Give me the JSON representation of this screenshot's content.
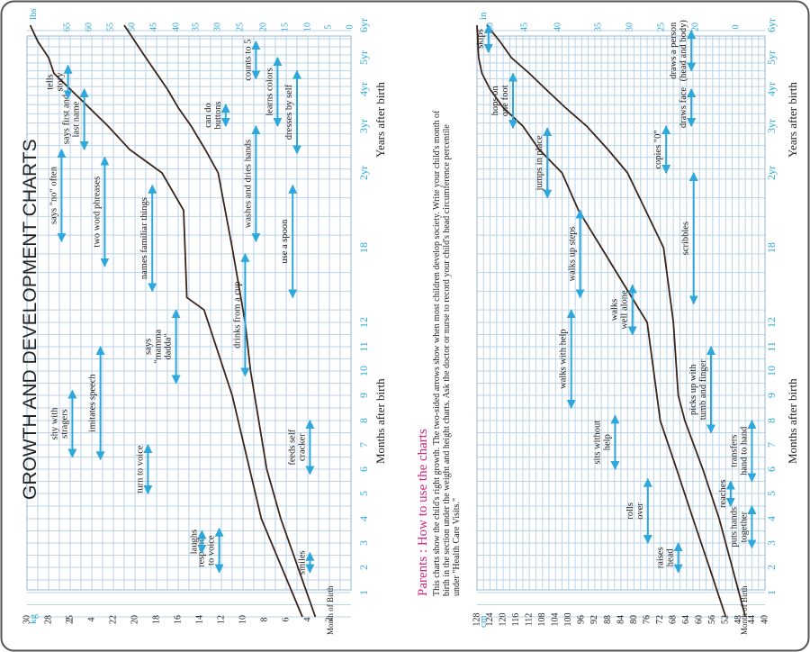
{
  "left": {
    "title": "GROWTH AND DEVELOPMENT CHARTS",
    "kg_unit": "kg",
    "lbs_unit": "lbs",
    "month_of_birth": "Month of Birth",
    "months_title": "Months after birth",
    "years_title": "Years after birth"
  },
  "right": {
    "cm_unit": "cm",
    "in_unit": "in",
    "month_of_birth": "Month of Birth",
    "months_title": "Months after birth",
    "years_title": "Years after birth"
  },
  "instructions": {
    "heading": "Parents : How to use the charts",
    "line1": "This charts show the child's right growth. The two-sided arrows show when most children develop society. Write your child's month of",
    "line2": "birth in the section under the weight and height charts. Ask the doctor or nurse to record your child's head circumference percentile",
    "line3": "under \"Health Care Visits.\"",
    "line4": ""
  },
  "chart_data": [
    {
      "type": "line",
      "chart": "weight",
      "x_unit": "months",
      "xlim": [
        0,
        72
      ],
      "ylim": [
        0,
        30
      ],
      "month_ticks": [
        "1",
        "2",
        "3",
        "4",
        "5",
        "6",
        "7",
        "8",
        "9",
        "10",
        "11",
        "12",
        "18"
      ],
      "year_ticks": [
        "2yr",
        "3yr",
        "4yr",
        "5yr",
        "6yr"
      ],
      "kg_ticks": [
        "2",
        "4",
        "6",
        "8",
        "10",
        "12",
        "14",
        "16",
        "18",
        "20",
        "22",
        "4",
        "2",
        "25",
        "28",
        "30"
      ],
      "lbs_ticks": [
        "0",
        "5",
        "10",
        "15",
        "20",
        "25",
        "30",
        "35",
        "40",
        "45",
        "50",
        "55",
        "60",
        "65"
      ],
      "series": [
        {
          "points": [
            [
              0,
              3.3
            ],
            [
              4,
              6.5
            ],
            [
              6,
              7.8
            ],
            [
              10,
              9.3
            ],
            [
              12,
              9.8
            ],
            [
              18,
              11
            ],
            [
              24,
              12.3
            ],
            [
              30,
              13.5
            ],
            [
              36,
              14.8
            ],
            [
              42,
              16
            ],
            [
              48,
              17
            ],
            [
              54,
              18
            ],
            [
              60,
              19
            ],
            [
              66,
              20
            ],
            [
              72,
              21
            ]
          ]
        },
        {
          "points": [
            [
              0,
              4.5
            ],
            [
              4,
              8.3
            ],
            [
              9,
              11
            ],
            [
              13,
              13.6
            ],
            [
              14,
              15.2
            ],
            [
              21,
              15.5
            ],
            [
              24,
              17.5
            ],
            [
              30,
              20.5
            ],
            [
              36,
              22.5
            ],
            [
              48,
              26
            ],
            [
              54,
              27.5
            ],
            [
              60,
              28
            ],
            [
              66,
              29
            ],
            [
              72,
              29.7
            ]
          ]
        }
      ],
      "milestones": [
        {
          "label": [
            "smiles"
          ],
          "from": 1.8,
          "to": 2.6,
          "level": 3.8
        },
        {
          "label": [
            "responds",
            "to voice"
          ],
          "from": 1.8,
          "to": 3.6,
          "level": 12.2
        },
        {
          "label": [
            "laughs"
          ],
          "from": 2.6,
          "to": 3.5,
          "level": 13.8
        },
        {
          "label": [
            "turn to voice"
          ],
          "from": 5,
          "to": 7,
          "level": 18.8
        },
        {
          "label": [
            "feeds self",
            "cracker"
          ],
          "from": 5.8,
          "to": 8,
          "level": 3.8
        },
        {
          "label": [
            "imitates speech"
          ],
          "from": 6.4,
          "to": 11,
          "level": 23.2
        },
        {
          "label": [
            "shy with",
            "stragers"
          ],
          "from": 6.5,
          "to": 9.2,
          "level": 25.8
        },
        {
          "label": [
            "says",
            "\"mamma",
            "dadda\""
          ],
          "from": 9.5,
          "to": 13,
          "level": 16.2
        },
        {
          "label": [
            "drinks from a cup"
          ],
          "from": 9.8,
          "to": 17.5,
          "level": 9.8
        },
        {
          "label": [
            "use a spoon"
          ],
          "from": 14,
          "to": 23,
          "level": 5.4
        },
        {
          "label": [
            "names familiar things"
          ],
          "from": 14.5,
          "to": 23,
          "level": 18.4
        },
        {
          "label": [
            "two word phreases"
          ],
          "from": 16.5,
          "to": 28,
          "level": 22.8
        },
        {
          "label": [
            "says \"no\" often"
          ],
          "from": 18.5,
          "to": 30,
          "level": 26.8
        },
        {
          "label": [
            "washes and dries hands"
          ],
          "from": 18.5,
          "to": 36,
          "level": 8.8
        },
        {
          "label": [
            "dresses by self"
          ],
          "from": 29,
          "to": 55,
          "level": 5
        },
        {
          "label": [
            "says first and",
            "last name"
          ],
          "from": 30,
          "to": 48,
          "level": 24.7
        },
        {
          "label": [
            "can do",
            "buttons"
          ],
          "from": 36,
          "to": 43,
          "level": 11.6
        },
        {
          "label": [
            "learns colors"
          ],
          "from": 36,
          "to": 60,
          "level": 6.8
        },
        {
          "label": [
            "tells",
            "story"
          ],
          "from": 45,
          "to": 57,
          "level": 26.2
        },
        {
          "label": [
            "counts to 5"
          ],
          "from": 52,
          "to": 66,
          "level": 8.8
        }
      ]
    },
    {
      "type": "line",
      "chart": "height",
      "x_unit": "months",
      "xlim": [
        0,
        72
      ],
      "ylim": [
        40,
        128
      ],
      "month_ticks": [
        "1",
        "2",
        "3",
        "4",
        "5",
        "6",
        "7",
        "8",
        "9",
        "10",
        "11",
        "12",
        "18"
      ],
      "year_ticks": [
        "2yr",
        "3yr",
        "4yr",
        "5yr",
        "6yr"
      ],
      "cm_ticks": [
        "40",
        "44",
        "48",
        "52",
        "56",
        "60",
        "64",
        "68",
        "72",
        "76",
        "80",
        "84",
        "88",
        "92",
        "96",
        "100",
        "104",
        "108",
        "112",
        "116",
        "120",
        "124",
        "128"
      ],
      "in_ticks": [
        "0",
        "20",
        "25",
        "30",
        "35",
        "40",
        "45",
        "50"
      ],
      "series": [
        {
          "points": [
            [
              0,
              46
            ],
            [
              2,
              50
            ],
            [
              4,
              54
            ],
            [
              6,
              59
            ],
            [
              8,
              64.5
            ],
            [
              9,
              66.5
            ],
            [
              12,
              68
            ],
            [
              18,
              71
            ],
            [
              24,
              82
            ],
            [
              30,
              88
            ],
            [
              36,
              94.5
            ],
            [
              42,
              101
            ],
            [
              48,
              107
            ],
            [
              54,
              112
            ],
            [
              60,
              117.5
            ],
            [
              66,
              121
            ],
            [
              72,
              125
            ]
          ]
        },
        {
          "points": [
            [
              0,
              52
            ],
            [
              2,
              57
            ],
            [
              4,
              62
            ],
            [
              6,
              67
            ],
            [
              8,
              72
            ],
            [
              12,
              76
            ],
            [
              15,
              83
            ],
            [
              18,
              90
            ],
            [
              21,
              97
            ],
            [
              24,
              102
            ],
            [
              30,
              109
            ],
            [
              36,
              114
            ],
            [
              42,
              120
            ],
            [
              48,
              124
            ],
            [
              54,
              126.5
            ],
            [
              60,
              127.5
            ],
            [
              72,
              128
            ]
          ]
        }
      ],
      "milestones": [
        {
          "label": [
            "raises",
            "head"
          ],
          "from": 1.8,
          "to": 3,
          "level": 66.5
        },
        {
          "label": [
            "puts hands",
            "together"
          ],
          "from": 2.8,
          "to": 4.5,
          "level": 44
        },
        {
          "label": [
            "rolls",
            "over"
          ],
          "from": 3,
          "to": 5.6,
          "level": 75.8
        },
        {
          "label": [
            "reaches"
          ],
          "from": 4.5,
          "to": 5.5,
          "level": 50.5
        },
        {
          "label": [
            "transfers",
            "hand to hand"
          ],
          "from": 5.5,
          "to": 8,
          "level": 44
        },
        {
          "label": [
            "sits without",
            "help"
          ],
          "from": 6,
          "to": 8.2,
          "level": 85.8
        },
        {
          "label": [
            "picks up with",
            "tumb and finger"
          ],
          "from": 7.5,
          "to": 11,
          "level": 56.5
        },
        {
          "label": [
            "walks with help"
          ],
          "from": 8.5,
          "to": 13,
          "level": 99.2
        },
        {
          "label": [
            "walks",
            "well alone"
          ],
          "from": 11.5,
          "to": 15,
          "level": 80.5
        },
        {
          "label": [
            "walks up steps"
          ],
          "from": 14,
          "to": 21,
          "level": 96.5
        },
        {
          "label": [
            "scribbles"
          ],
          "from": 13.5,
          "to": 24,
          "level": 61.8
        },
        {
          "label": [
            "jumps in place"
          ],
          "from": 22,
          "to": 35.5,
          "level": 106.5
        },
        {
          "label": [
            "copies \"0\""
          ],
          "from": 24,
          "to": 36,
          "level": 70.2
        },
        {
          "label": [
            "hops on",
            "one foot"
          ],
          "from": 35.5,
          "to": 54,
          "level": 117
        },
        {
          "label": [
            "draws face"
          ],
          "from": 36,
          "to": 48,
          "level": 62.5
        },
        {
          "label": [
            "draws a person",
            "(head and body)"
          ],
          "from": 55,
          "to": 70,
          "level": 62.5
        },
        {
          "label": [
            "skips"
          ],
          "from": 62,
          "to": 72,
          "level": 124.5
        }
      ]
    }
  ]
}
